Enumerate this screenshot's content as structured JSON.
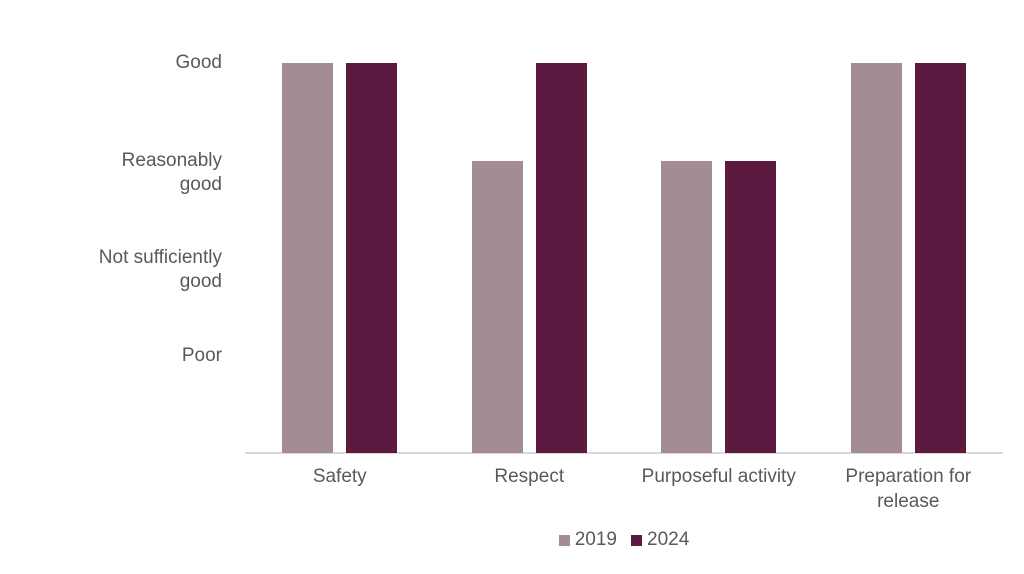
{
  "chart_data": {
    "type": "bar",
    "title": "",
    "xlabel": "",
    "ylabel": "",
    "grid": false,
    "ylim": [
      0,
      4
    ],
    "categories": [
      "Safety",
      "Respect",
      "Purposeful activity",
      "Preparation for release"
    ],
    "category_display": [
      "Safety",
      "Respect",
      "Purposeful activity",
      "Preparation for\nrelease"
    ],
    "series": [
      {
        "name": "2019",
        "color": "#A38C95",
        "values": [
          4,
          3,
          3,
          4
        ],
        "value_labels": [
          "Good",
          "Reasonably good",
          "Reasonably good",
          "Good"
        ]
      },
      {
        "name": "2024",
        "color": "#5C1A40",
        "values": [
          4,
          4,
          3,
          4
        ],
        "value_labels": [
          "Good",
          "Good",
          "Reasonably good",
          "Good"
        ]
      }
    ],
    "yticks": [
      {
        "value": 4,
        "label": "Good",
        "display": "Good"
      },
      {
        "value": 3,
        "label": "Reasonably good",
        "display": "Reasonably\ngood"
      },
      {
        "value": 2,
        "label": "Not sufficiently good",
        "display": "Not sufficiently\ngood"
      },
      {
        "value": 1,
        "label": "Poor",
        "display": "Poor"
      }
    ],
    "legend": {
      "position": "bottom",
      "entries": [
        "2019",
        "2024"
      ]
    },
    "colors": {
      "text": "#595959",
      "axis_line": "#D9D9D9",
      "background": "#FFFFFF"
    }
  }
}
